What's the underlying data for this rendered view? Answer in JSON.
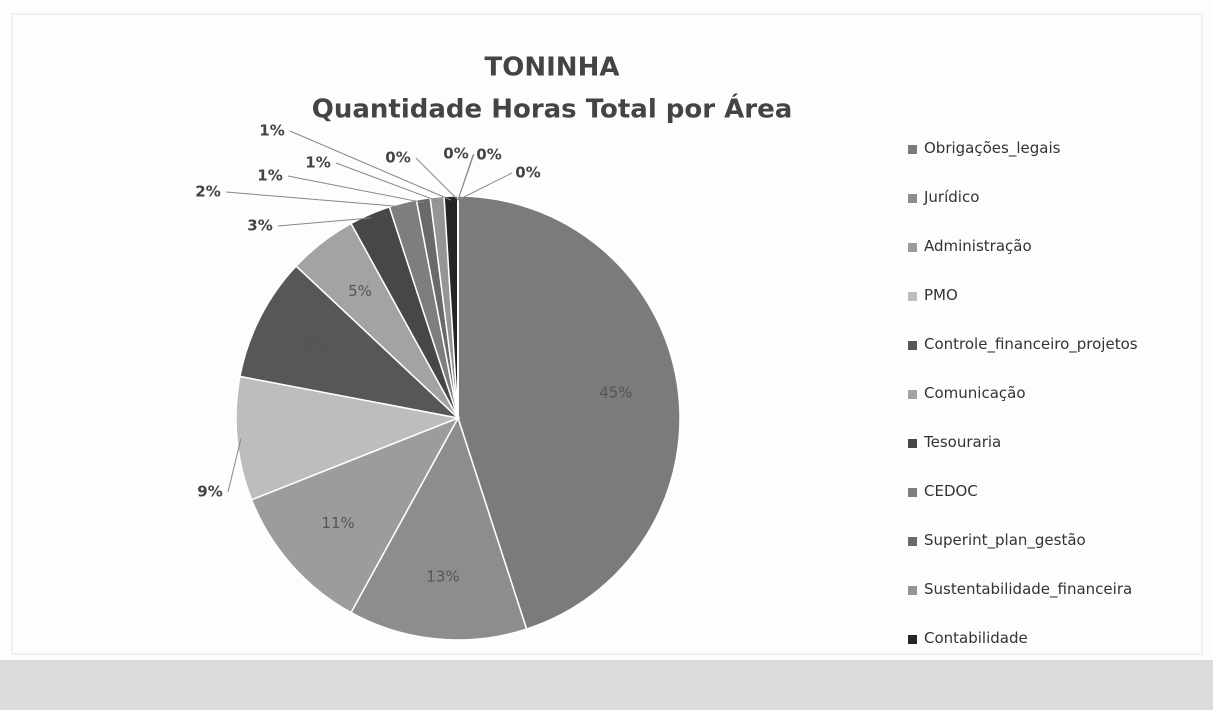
{
  "chart_data": {
    "type": "pie",
    "title": "TONINHA",
    "subtitle": "Quantidade Horas Total por Área",
    "categories": [
      "Obrigações_legais",
      "Jurídico",
      "Administração",
      "PMO",
      "Controle_financeiro_projetos",
      "Comunicação",
      "Tesouraria",
      "CEDOC",
      "Superint_plan_gestão",
      "Sustentabilidade_financeira",
      "Contabilidade",
      null,
      null,
      null,
      null
    ],
    "values": [
      45,
      13,
      11,
      9,
      9,
      5,
      3,
      2,
      1,
      1,
      1,
      0,
      0,
      0,
      0
    ],
    "value_labels": [
      "45%",
      "13%",
      "11%",
      "9%",
      "9%",
      "5%",
      "3%",
      "2%",
      "1%",
      "1%",
      "1%",
      "0%",
      "0%",
      "0%",
      "0%"
    ],
    "colors": [
      "#7b7b7b",
      "#8d8d8d",
      "#9c9c9c",
      "#bdbdbd",
      "#575757",
      "#a3a3a3",
      "#474747",
      "#7e7e7e",
      "#6a6a6a",
      "#959595",
      "#262626",
      "#666666",
      "#999999",
      "#bbbbbb",
      "#555555"
    ],
    "legend": "right"
  }
}
